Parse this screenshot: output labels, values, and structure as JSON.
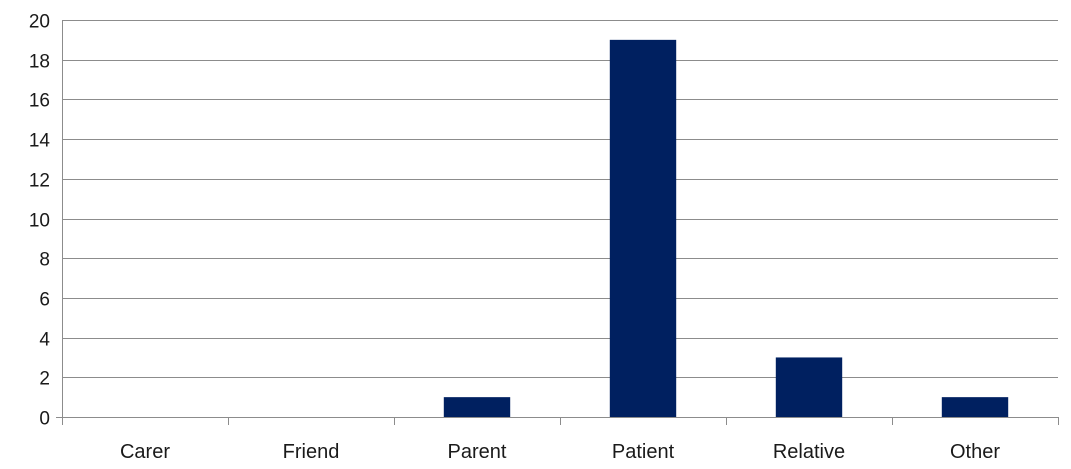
{
  "chart_data": {
    "type": "bar",
    "categories": [
      "Carer",
      "Friend",
      "Parent",
      "Patient",
      "Relative",
      "Other"
    ],
    "values": [
      0,
      0,
      1,
      19,
      3,
      1
    ],
    "title": "",
    "xlabel": "",
    "ylabel": "",
    "ylim": [
      0,
      20
    ],
    "yticks": [
      0,
      2,
      4,
      6,
      8,
      10,
      12,
      14,
      16,
      18,
      20
    ],
    "grid": true,
    "legend": "none",
    "bar_color": "#002060"
  }
}
